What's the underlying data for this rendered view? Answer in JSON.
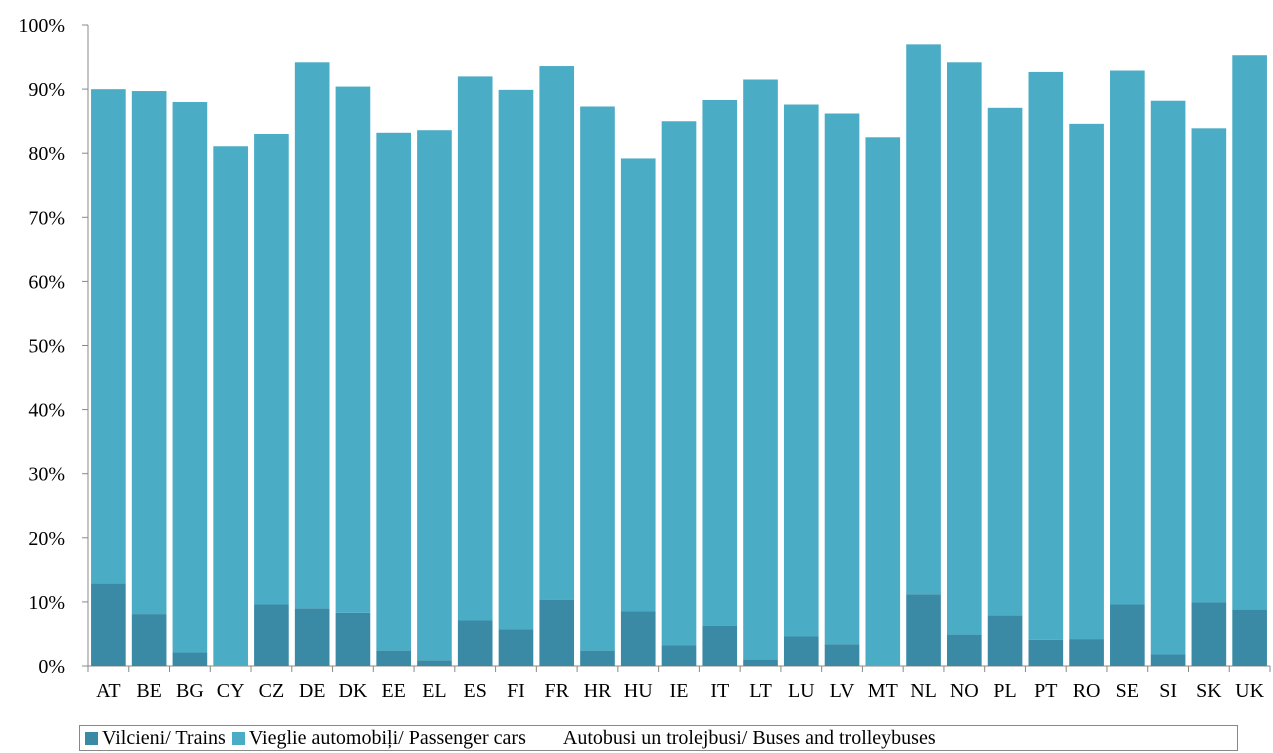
{
  "chart_data": {
    "type": "bar",
    "stacked": true,
    "title": "",
    "xlabel": "",
    "ylabel": "",
    "ylim": [
      0,
      100
    ],
    "y_ticks": [
      "0%",
      "10%",
      "20%",
      "30%",
      "40%",
      "50%",
      "60%",
      "70%",
      "80%",
      "90%",
      "100%"
    ],
    "grid": false,
    "legend_position": "bottom",
    "categories": [
      "AT",
      "BE",
      "BG",
      "CY",
      "CZ",
      "DE",
      "DK",
      "EE",
      "EL",
      "ES",
      "FI",
      "FR",
      "HR",
      "HU",
      "IE",
      "IT",
      "LT",
      "LU",
      "LV",
      "MT",
      "NL",
      "NO",
      "PL",
      "PT",
      "RO",
      "SE",
      "SI",
      "SK",
      "UK"
    ],
    "series": [
      {
        "name": "Vilcieni/ Trains",
        "color": "#3A8AA5",
        "values": [
          12.9,
          8.1,
          2.1,
          0,
          9.6,
          9.0,
          8.3,
          2.4,
          0.9,
          7.1,
          5.7,
          10.3,
          2.4,
          8.5,
          3.2,
          6.3,
          1.0,
          4.6,
          3.4,
          0,
          11.2,
          4.9,
          7.9,
          4.1,
          4.2,
          9.6,
          1.8,
          9.9,
          8.8
        ]
      },
      {
        "name": "Vieglie automobiļi/ Passenger cars",
        "color": "#4BACC6",
        "values": [
          77.1,
          81.6,
          85.9,
          81.1,
          73.4,
          85.2,
          82.1,
          80.8,
          82.7,
          84.9,
          84.2,
          83.3,
          84.9,
          70.7,
          81.8,
          82.0,
          90.5,
          83.0,
          82.8,
          82.5,
          85.8,
          89.3,
          79.2,
          88.6,
          80.4,
          83.3,
          86.4,
          74.0,
          86.5
        ]
      },
      {
        "name": "Autobusi un trolejbusi/ Buses and trolleybuses",
        "color": "#FFFFFF",
        "values": [
          10.0,
          10.3,
          12.0,
          18.9,
          17.0,
          5.8,
          9.6,
          16.8,
          16.4,
          8.0,
          10.1,
          6.4,
          12.7,
          20.8,
          15.0,
          11.7,
          8.5,
          12.4,
          13.8,
          17.5,
          3.0,
          5.8,
          12.9,
          7.3,
          15.4,
          7.1,
          11.8,
          16.1,
          4.7
        ]
      }
    ]
  }
}
